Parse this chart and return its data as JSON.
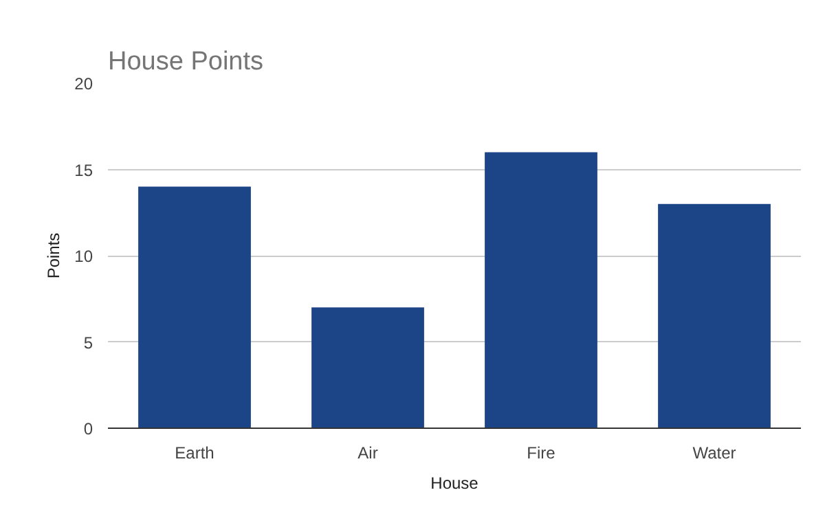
{
  "chart_data": {
    "type": "bar",
    "title": "House Points",
    "xlabel": "House",
    "ylabel": "Points",
    "categories": [
      "Earth",
      "Air",
      "Fire",
      "Water"
    ],
    "values": [
      14,
      7,
      16,
      13
    ],
    "color": "#1c4587",
    "ylim": [
      0,
      20
    ],
    "yticks": [
      0,
      5,
      10,
      15,
      20
    ],
    "grid": "y"
  }
}
